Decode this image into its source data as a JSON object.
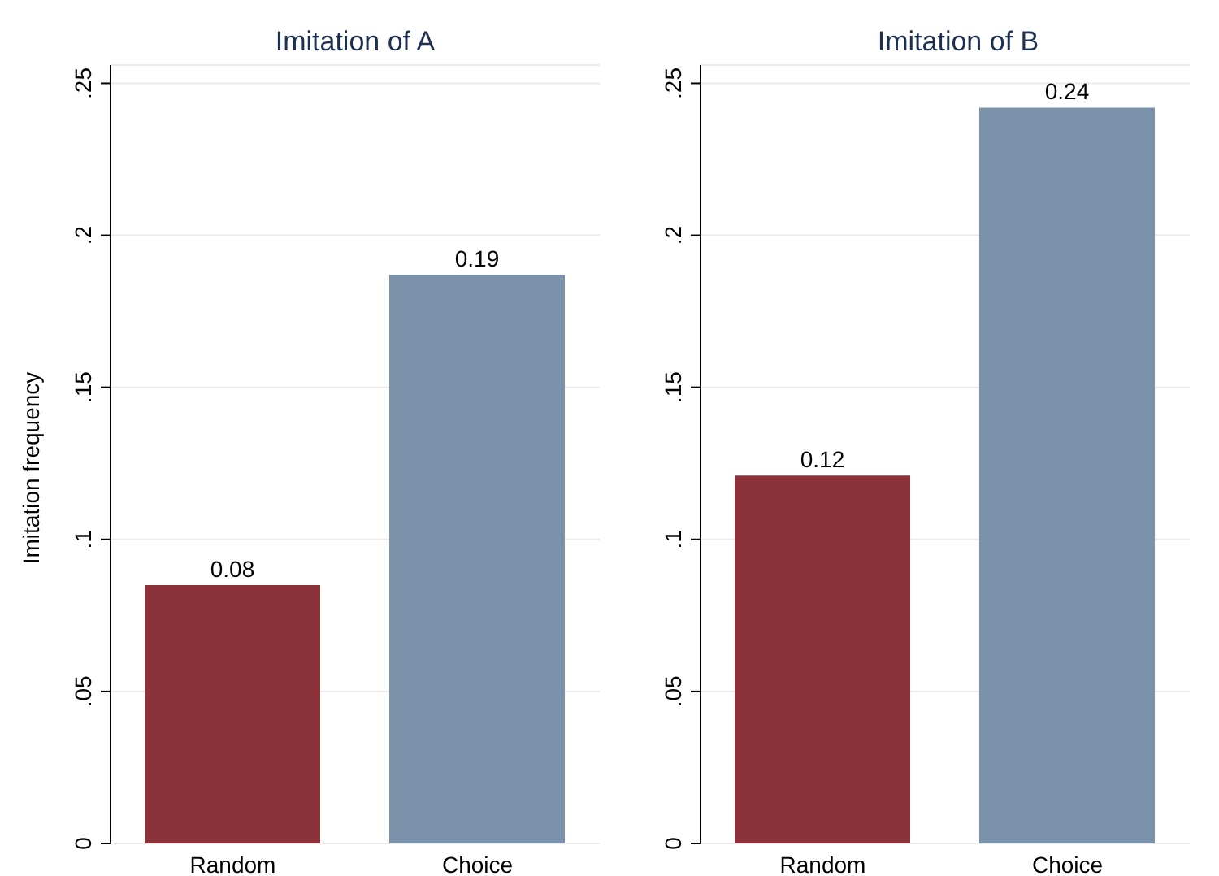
{
  "chart_data": [
    {
      "type": "bar",
      "title": "Imitation of A",
      "ylabel": "Imitation frequency",
      "categories": [
        "Random",
        "Choice"
      ],
      "values": [
        0.085,
        0.187
      ],
      "colors": [
        "#8b323b",
        "#7b93aa"
      ],
      "value_labels": [
        "0.08",
        "0.19"
      ],
      "ylim": [
        0,
        0.256
      ],
      "yticks": [
        0,
        {
          "value": 0.05,
          "label": ".05"
        },
        {
          "value": 0.1,
          "label": ".1"
        },
        {
          "value": 0.15,
          "label": ".15"
        },
        {
          "value": 0.2,
          "label": ".2"
        },
        {
          "value": 0.25,
          "label": ".25"
        }
      ],
      "grid": "y"
    },
    {
      "type": "bar",
      "title": "Imitation of B",
      "categories": [
        "Random",
        "Choice"
      ],
      "values": [
        0.121,
        0.242
      ],
      "colors": [
        "#8b323b",
        "#7b93aa"
      ],
      "value_labels": [
        "0.12",
        "0.24"
      ],
      "ylim": [
        0,
        0.256
      ],
      "yticks": [
        0,
        {
          "value": 0.05,
          "label": ".05"
        },
        {
          "value": 0.1,
          "label": ".1"
        },
        {
          "value": 0.15,
          "label": ".15"
        },
        {
          "value": 0.2,
          "label": ".2"
        },
        {
          "value": 0.25,
          "label": ".25"
        }
      ],
      "grid": "y"
    }
  ]
}
